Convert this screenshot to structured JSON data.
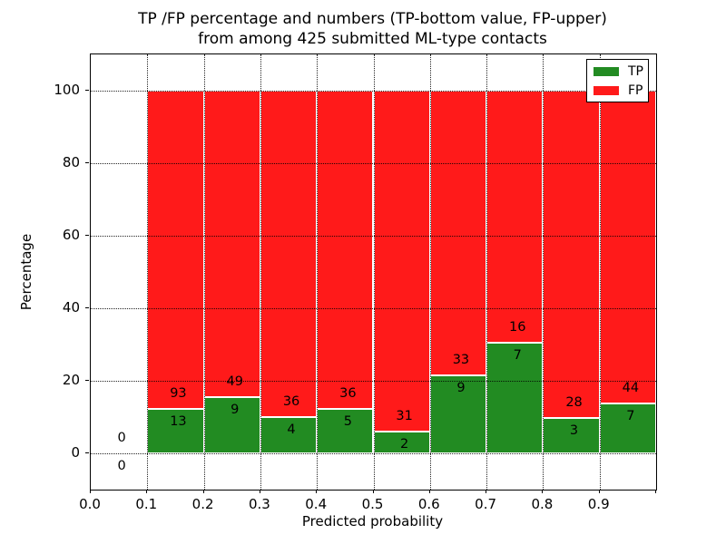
{
  "figure": {
    "title_line1": "TP /FP percentage and numbers (TP-bottom value, FP-upper)",
    "title_line2": "from among 425 submitted ML-type contacts"
  },
  "chart_data": {
    "type": "bar",
    "stacked": true,
    "title": "TP /FP percentage and numbers (TP-bottom value, FP-upper)\nfrom among 425 submitted ML-type contacts",
    "xlabel": "Predicted probability",
    "ylabel": "Percentage",
    "xlim": [
      0.0,
      1.0
    ],
    "ylim": [
      -10,
      110
    ],
    "x_ticks": [
      "0.0",
      "0.1",
      "0.2",
      "0.3",
      "0.4",
      "0.5",
      "0.6",
      "0.7",
      "0.8",
      "0.9"
    ],
    "y_ticks": [
      "0",
      "20",
      "40",
      "60",
      "80",
      "100"
    ],
    "grid": "dotted both axes",
    "total_contacts": 425,
    "legend": {
      "position": "upper right",
      "entries": [
        {
          "label": "TP",
          "color": "#228b22"
        },
        {
          "label": "FP",
          "color": "#ff1a1a"
        }
      ]
    },
    "colors": {
      "tp": "#228b22",
      "fp": "#ff1a1a",
      "bar_edge": "#ffffff"
    },
    "bins": [
      {
        "range": [
          0.0,
          0.1
        ],
        "tp": 0,
        "fp": 0,
        "tp_pct": 0,
        "fp_pct": 0
      },
      {
        "range": [
          0.1,
          0.2
        ],
        "tp": 13,
        "fp": 93,
        "tp_pct": 12.26,
        "fp_pct": 87.74
      },
      {
        "range": [
          0.2,
          0.3
        ],
        "tp": 9,
        "fp": 49,
        "tp_pct": 15.52,
        "fp_pct": 84.48
      },
      {
        "range": [
          0.3,
          0.4
        ],
        "tp": 4,
        "fp": 36,
        "tp_pct": 10.0,
        "fp_pct": 90.0
      },
      {
        "range": [
          0.4,
          0.5
        ],
        "tp": 5,
        "fp": 36,
        "tp_pct": 12.2,
        "fp_pct": 87.8
      },
      {
        "range": [
          0.5,
          0.6
        ],
        "tp": 2,
        "fp": 31,
        "tp_pct": 6.06,
        "fp_pct": 93.94
      },
      {
        "range": [
          0.6,
          0.7
        ],
        "tp": 9,
        "fp": 33,
        "tp_pct": 21.43,
        "fp_pct": 78.57
      },
      {
        "range": [
          0.7,
          0.8
        ],
        "tp": 7,
        "fp": 16,
        "tp_pct": 30.43,
        "fp_pct": 69.57
      },
      {
        "range": [
          0.8,
          0.9
        ],
        "tp": 3,
        "fp": 28,
        "tp_pct": 9.68,
        "fp_pct": 90.32
      },
      {
        "range": [
          0.9,
          1.0
        ],
        "tp": 7,
        "fp": 44,
        "tp_pct": 13.73,
        "fp_pct": 86.27
      }
    ]
  }
}
